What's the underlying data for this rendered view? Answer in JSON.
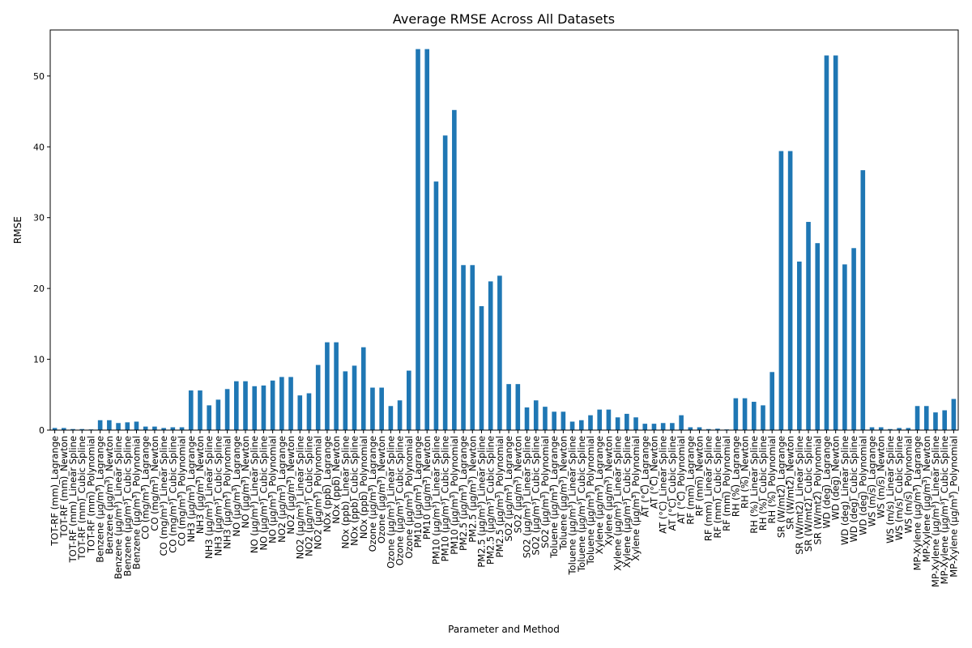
{
  "chart_data": {
    "type": "bar",
    "title": "Average RMSE Across All Datasets",
    "xlabel": "Parameter and Method",
    "ylabel": "RMSE",
    "ylim": [
      0,
      56.5
    ],
    "yticks": [
      0,
      10,
      20,
      30,
      40,
      50
    ],
    "grid": false,
    "legend": "none",
    "bar_color": "#1f77b4",
    "categories": [
      "TOT-RF (mm)_Lagrange",
      "TOT-RF (mm)_Newton",
      "TOT-RF (mm)_Linear Spline",
      "TOT-RF (mm)_Cubic Spline",
      "TOT-RF (mm)_Polynomial",
      "Benzene (µg/m³)_Lagrange",
      "Benzene (µg/m³)_Newton",
      "Benzene (µg/m³)_Linear Spline",
      "Benzene (µg/m³)_Cubic Spline",
      "Benzene (µg/m³)_Polynomial",
      "CO (mg/m³)_Lagrange",
      "CO (mg/m³)_Newton",
      "CO (mg/m³)_Linear Spline",
      "CO (mg/m³)_Cubic Spline",
      "CO (mg/m³)_Polynomial",
      "NH3 (µg/m³)_Lagrange",
      "NH3 (µg/m³)_Newton",
      "NH3 (µg/m³)_Linear Spline",
      "NH3 (µg/m³)_Cubic Spline",
      "NH3 (µg/m³)_Polynomial",
      "NO (µg/m³)_Lagrange",
      "NO (µg/m³)_Newton",
      "NO (µg/m³)_Linear Spline",
      "NO (µg/m³)_Cubic Spline",
      "NO (µg/m³)_Polynomial",
      "NO2 (µg/m³)_Lagrange",
      "NO2 (µg/m³)_Newton",
      "NO2 (µg/m³)_Linear Spline",
      "NO2 (µg/m³)_Cubic Spline",
      "NO2 (µg/m³)_Polynomial",
      "NOx (ppb)_Lagrange",
      "NOx (ppb)_Newton",
      "NOx (ppb)_Linear Spline",
      "NOx (ppb)_Cubic Spline",
      "NOx (ppb)_Polynomial",
      "Ozone (µg/m³)_Lagrange",
      "Ozone (µg/m³)_Newton",
      "Ozone (µg/m³)_Linear Spline",
      "Ozone (µg/m³)_Cubic Spline",
      "Ozone (µg/m³)_Polynomial",
      "PM10 (µg/m³)_Lagrange",
      "PM10 (µg/m³)_Newton",
      "PM10 (µg/m³)_Linear Spline",
      "PM10 (µg/m³)_Cubic Spline",
      "PM10 (µg/m³)_Polynomial",
      "PM2.5 (µg/m³)_Lagrange",
      "PM2.5 (µg/m³)_Newton",
      "PM2.5 (µg/m³)_Linear Spline",
      "PM2.5 (µg/m³)_Cubic Spline",
      "PM2.5 (µg/m³)_Polynomial",
      "SO2 (µg/m³)_Lagrange",
      "SO2 (µg/m³)_Newton",
      "SO2 (µg/m³)_Linear Spline",
      "SO2 (µg/m³)_Cubic Spline",
      "SO2 (µg/m³)_Polynomial",
      "Toluene (µg/m³)_Lagrange",
      "Toluene (µg/m³)_Newton",
      "Toluene (µg/m³)_Linear Spline",
      "Toluene (µg/m³)_Cubic Spline",
      "Toluene (µg/m³)_Polynomial",
      "Xylene (µg/m³)_Lagrange",
      "Xylene (µg/m³)_Newton",
      "Xylene (µg/m³)_Linear Spline",
      "Xylene (µg/m³)_Cubic Spline",
      "Xylene (µg/m³)_Polynomial",
      "AT (°C)_Lagrange",
      "AT (°C)_Newton",
      "AT (°C)_Linear Spline",
      "AT (°C)_Cubic Spline",
      "AT (°C)_Polynomial",
      "RF (mm)_Lagrange",
      "RF (mm)_Newton",
      "RF (mm)_Linear Spline",
      "RF (mm)_Cubic Spline",
      "RF (mm)_Polynomial",
      "RH (%)_Lagrange",
      "RH (%)_Newton",
      "RH (%)_Linear Spline",
      "RH (%)_Cubic Spline",
      "RH (%)_Polynomial",
      "SR (W/mt2)_Lagrange",
      "SR (W/mt2)_Newton",
      "SR (W/mt2)_Linear Spline",
      "SR (W/mt2)_Cubic Spline",
      "SR (W/mt2)_Polynomial",
      "WD (deg)_Lagrange",
      "WD (deg)_Newton",
      "WD (deg)_Linear Spline",
      "WD (deg)_Cubic Spline",
      "WD (deg)_Polynomial",
      "WS (m/s)_Lagrange",
      "WS (m/s)_Newton",
      "WS (m/s)_Linear Spline",
      "WS (m/s)_Cubic Spline",
      "WS (m/s)_Polynomial",
      "MP-Xylene (µg/m³)_Lagrange",
      "MP-Xylene (µg/m³)_Newton",
      "MP-Xylene (µg/m³)_Linear Spline",
      "MP-Xylene (µg/m³)_Cubic Spline",
      "MP-Xylene (µg/m³)_Polynomial"
    ],
    "values": [
      0.3,
      0.3,
      0.15,
      0.15,
      0.1,
      1.4,
      1.4,
      1.0,
      1.1,
      1.2,
      0.5,
      0.5,
      0.3,
      0.4,
      0.4,
      5.6,
      5.6,
      3.5,
      4.3,
      5.8,
      6.9,
      6.9,
      6.2,
      6.3,
      7.0,
      7.5,
      7.5,
      4.9,
      5.2,
      9.2,
      12.4,
      12.4,
      8.3,
      9.1,
      11.7,
      6.0,
      6.0,
      3.4,
      4.2,
      8.4,
      53.8,
      53.8,
      35.1,
      41.6,
      45.2,
      23.3,
      23.3,
      17.5,
      21.0,
      21.8,
      6.5,
      6.5,
      3.2,
      4.2,
      3.3,
      2.6,
      2.6,
      1.2,
      1.4,
      2.1,
      2.9,
      2.9,
      1.8,
      2.3,
      1.8,
      0.9,
      0.9,
      1.0,
      1.0,
      2.1,
      0.4,
      0.4,
      0.15,
      0.2,
      0.1,
      4.5,
      4.5,
      4.0,
      3.5,
      8.2,
      39.4,
      39.4,
      23.8,
      29.4,
      26.4,
      52.9,
      52.9,
      23.4,
      25.7,
      36.7,
      0.4,
      0.4,
      0.15,
      0.3,
      0.3,
      3.4,
      3.4,
      2.5,
      2.8,
      4.4
    ]
  }
}
